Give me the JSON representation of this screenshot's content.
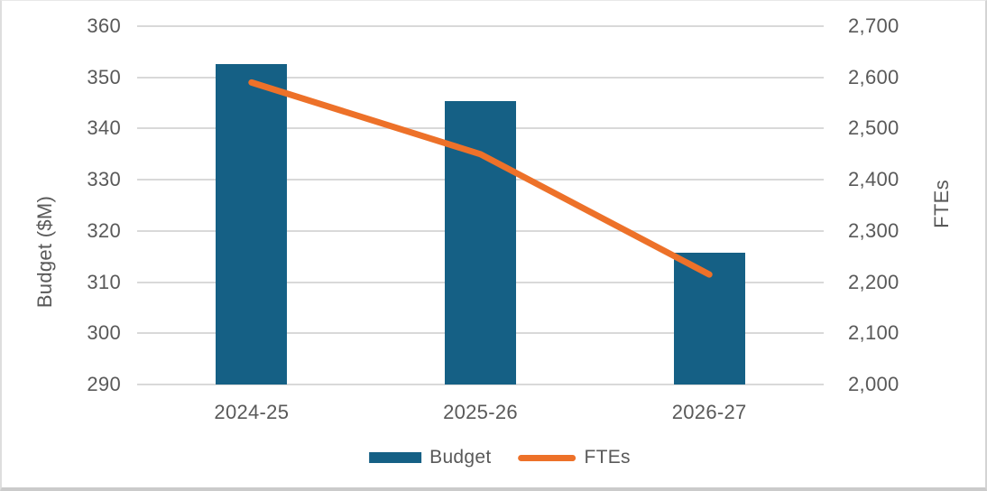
{
  "chart_data": {
    "type": "combo-bar-line",
    "title": "",
    "categories": [
      "2024-25",
      "2025-26",
      "2026-27"
    ],
    "series": [
      {
        "name": "Budget",
        "type": "bar",
        "axis": "left",
        "color": "#156085",
        "values": [
          352.6,
          345.3,
          315.7
        ]
      },
      {
        "name": "FTEs",
        "type": "line",
        "axis": "right",
        "color": "#ED7129",
        "values": [
          2590,
          2450,
          2215
        ]
      }
    ],
    "left_axis": {
      "title": "Budget ($M)",
      "min": 290,
      "max": 360,
      "step": 10,
      "tick_labels": [
        "290",
        "300",
        "310",
        "320",
        "330",
        "340",
        "350",
        "360"
      ]
    },
    "right_axis": {
      "title": "FTEs",
      "min": 2000,
      "max": 2700,
      "step": 100,
      "tick_labels": [
        "2,000",
        "2,100",
        "2,200",
        "2,300",
        "2,400",
        "2,500",
        "2,600",
        "2,700"
      ]
    },
    "legend": {
      "position": "bottom",
      "items": [
        "Budget",
        "FTEs"
      ]
    },
    "grid": true,
    "gridline_color": "#D9D9D9",
    "text_color": "#595959"
  }
}
